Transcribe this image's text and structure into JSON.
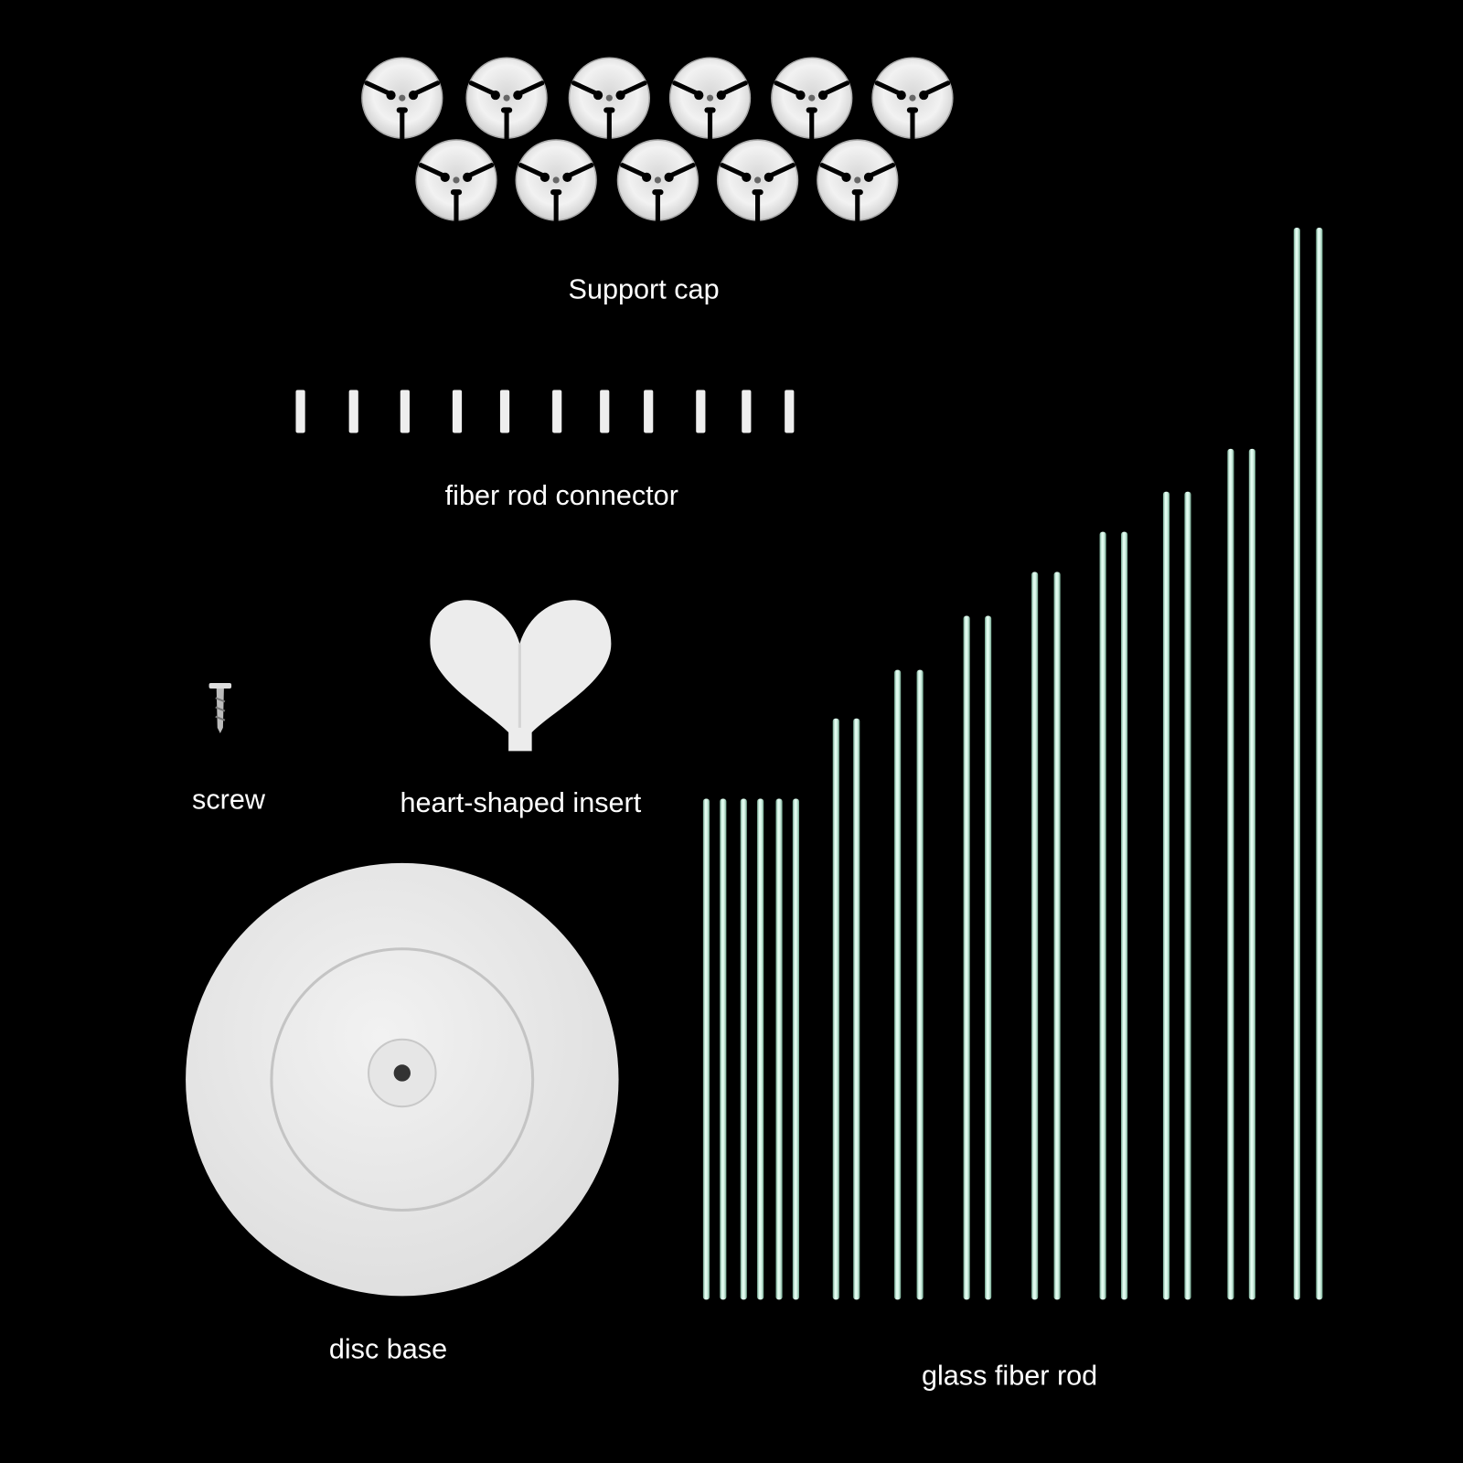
{
  "labels": {
    "support_cap": "Support cap",
    "fiber_rod_connector": "fiber rod connector",
    "screw": "screw",
    "heart_insert": "heart-shaped insert",
    "disc_base": "disc base",
    "glass_fiber_rod": "glass fiber rod"
  },
  "colors": {
    "background": "#000000",
    "part_white": "#e8e8e8",
    "rod": "#cfeee0",
    "rod_edge": "#6fa38c"
  }
}
